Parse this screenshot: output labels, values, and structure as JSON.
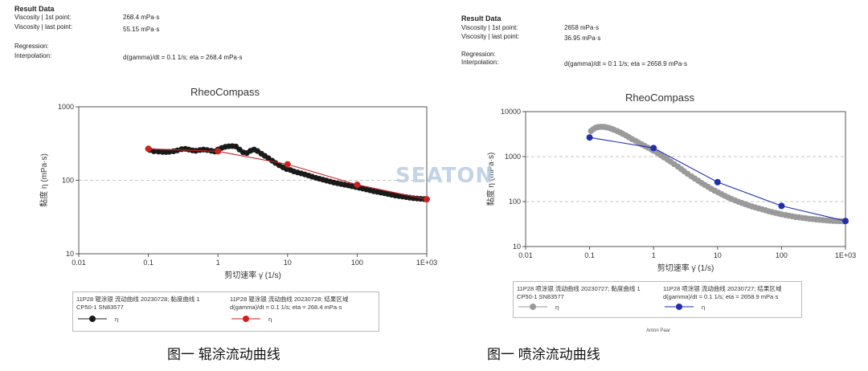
{
  "left": {
    "result_data": {
      "title": "Result Data",
      "rows": [
        {
          "label": "Viscosity | 1st point:",
          "value": "268.4 mPa·s"
        },
        {
          "label": "Viscosity | last point:",
          "value": "55.15 mPa·s"
        },
        {
          "label": "Regression:",
          "value": ""
        },
        {
          "label": "Interpolation:",
          "value": "d(gamma)/dt = 0.1 1/s; eta = 268.4 mPa·s"
        }
      ]
    },
    "legend": {
      "entry1_line1": "11P28 辊涂银  流动曲线    20230728; 黏度曲线 1",
      "entry1_line2": "CP50-1 SN83577",
      "entry1_symbol": "η",
      "entry2_line1": "11P28 辊涂银  流动曲线    20230728; 结果区域",
      "entry2_line2": "d(gamma)/dt = 0.1 1/s; eta = 268.4 mPa·s",
      "entry2_symbol": "η"
    },
    "caption": "图一  辊涂流动曲线"
  },
  "right": {
    "result_data": {
      "title": "Result Data",
      "rows": [
        {
          "label": "Viscosity | 1st point:",
          "value": "2658 mPa·s"
        },
        {
          "label": "Viscosity | last point:",
          "value": "36.95 mPa·s"
        },
        {
          "label": "Regression:",
          "value": ""
        },
        {
          "label": "Interpolation:",
          "value": "d(gamma)/dt = 0.1 1/s; eta = 2658.9 mPa·s"
        }
      ]
    },
    "legend": {
      "entry1_line1": "11P28 喷涂银  流动曲线    20230727; 黏度曲线 1",
      "entry1_line2": "CP50-1 SN83577",
      "entry1_symbol": "η",
      "entry2_line1": "11P28 喷涂银  流动曲线    20230727; 结果区域",
      "entry2_line2": "d(gamma)/dt = 0.1 1/s; eta = 2658.9 mPa·s",
      "entry2_symbol": "η"
    },
    "footer_note": "Anton Paar",
    "caption": "图一  喷涂流动曲线"
  },
  "watermark": "SEATON",
  "chart_data": [
    {
      "type": "scatter",
      "title": "RheoCompass",
      "xlabel": "剪切速率 γ̇ (1/s)",
      "ylabel": "黏度 η (mPa·s)",
      "xscale": "log",
      "yscale": "log",
      "xlim": [
        0.01,
        1000
      ],
      "ylim": [
        10,
        1000
      ],
      "xticks": [
        "0.01",
        "0.1",
        "1",
        "10",
        "100",
        "1E+03"
      ],
      "yticks": [
        "10",
        "100",
        "1000"
      ],
      "grid": "horizontal dashed",
      "series": [
        {
          "name": "η",
          "color": "#1a1a1a",
          "x": [
            0.105,
            0.12,
            0.14,
            0.16,
            0.18,
            0.2,
            0.23,
            0.26,
            0.3,
            0.34,
            0.38,
            0.43,
            0.48,
            0.55,
            0.62,
            0.7,
            0.8,
            0.9,
            1.0,
            1.13,
            1.27,
            1.43,
            1.61,
            1.81,
            2.04,
            2.3,
            2.6,
            2.93,
            3.3,
            3.7,
            4.2,
            4.7,
            5.3,
            6.0,
            6.7,
            7.6,
            8.6,
            9.7,
            11,
            12.3,
            13.9,
            15.7,
            17.7,
            20,
            22.5,
            25.4,
            28.6,
            32.2,
            36.3,
            41,
            46.2,
            52.1,
            58.7,
            66.1,
            74.5,
            84,
            94.7,
            106.8,
            120.3,
            135.6,
            152.9,
            172.3,
            194.2,
            218.9,
            246.7,
            278,
            313.4,
            353.2,
            398.1,
            448.7,
            505.8,
            570.1,
            642.6,
            724.3,
            816.3,
            920.1,
            1000
          ],
          "y": [
            258,
            248,
            245,
            243,
            242,
            244,
            248,
            255,
            265,
            268,
            262,
            255,
            252,
            258,
            262,
            258,
            252,
            246,
            262,
            275,
            285,
            290,
            292,
            288,
            262,
            240,
            235,
            252,
            262,
            250,
            230,
            215,
            200,
            185,
            172,
            160,
            150,
            142,
            138,
            132,
            128,
            124,
            120,
            116,
            112,
            108,
            105,
            102,
            99,
            96,
            93,
            91,
            89,
            87,
            85,
            83,
            81,
            79,
            77,
            75,
            73,
            71,
            69.5,
            68,
            66.5,
            65,
            63.5,
            62,
            61,
            60,
            59,
            58,
            57,
            56.5,
            56,
            55.5,
            55.15
          ]
        },
        {
          "name": "η",
          "color": "#cc2222",
          "x": [
            0.1,
            1,
            10,
            100,
            1000
          ],
          "y": [
            268.4,
            248,
            165,
            87,
            55.15
          ]
        }
      ]
    },
    {
      "type": "scatter",
      "title": "RheoCompass",
      "xlabel": "剪切速率 γ̇ (1/s)",
      "ylabel": "黏度 η (mPa·s)",
      "xscale": "log",
      "yscale": "log",
      "xlim": [
        0.01,
        1000
      ],
      "ylim": [
        10,
        10000
      ],
      "xticks": [
        "0.01",
        "0.1",
        "1",
        "10",
        "100",
        "1E+03"
      ],
      "yticks": [
        "10",
        "100",
        "1000",
        "10000"
      ],
      "grid": "horizontal dashed",
      "series": [
        {
          "name": "η",
          "color": "#9a9a9a",
          "x": [
            0.105,
            0.115,
            0.125,
            0.137,
            0.15,
            0.165,
            0.18,
            0.2,
            0.22,
            0.24,
            0.27,
            0.3,
            0.33,
            0.37,
            0.41,
            0.46,
            0.52,
            0.58,
            0.65,
            0.73,
            0.82,
            0.92,
            1.0,
            1.15,
            1.3,
            1.45,
            1.65,
            1.85,
            2.1,
            2.4,
            2.7,
            3.0,
            3.4,
            3.9,
            4.4,
            5.0,
            5.6,
            6.3,
            7.1,
            8.0,
            9.0,
            10.2,
            11.5,
            13,
            14.7,
            16.6,
            18.8,
            21.2,
            24,
            27,
            30.5,
            34.5,
            39,
            44,
            50,
            56,
            63,
            71,
            80,
            90,
            100,
            115,
            130,
            147,
            166,
            188,
            212,
            240,
            271,
            306,
            346,
            391,
            442,
            500,
            565,
            639,
            722,
            816,
            922,
            1000
          ],
          "y": [
            3700,
            4100,
            4400,
            4550,
            4600,
            4580,
            4500,
            4350,
            4150,
            3950,
            3700,
            3450,
            3200,
            2950,
            2700,
            2450,
            2250,
            2050,
            1880,
            1720,
            1580,
            1450,
            1350,
            1200,
            1070,
            960,
            860,
            770,
            680,
            600,
            530,
            470,
            415,
            365,
            325,
            290,
            260,
            235,
            212,
            192,
            175,
            160,
            146,
            134,
            123,
            114,
            106,
            99,
            93,
            87.5,
            82.5,
            78,
            74,
            70.5,
            67,
            64,
            61,
            58.5,
            56,
            54,
            52,
            50,
            48.5,
            47,
            45.5,
            44.5,
            43.5,
            42.5,
            41.5,
            40.8,
            40,
            39.3,
            38.7,
            38.1,
            37.6,
            37.2,
            36.9,
            36.7,
            36.5,
            36.95
          ]
        },
        {
          "name": "η",
          "color": "#1f2fb0",
          "x": [
            0.1,
            1,
            10,
            100,
            1000
          ],
          "y": [
            2658.9,
            1550,
            270,
            80,
            36.95
          ]
        }
      ]
    }
  ]
}
